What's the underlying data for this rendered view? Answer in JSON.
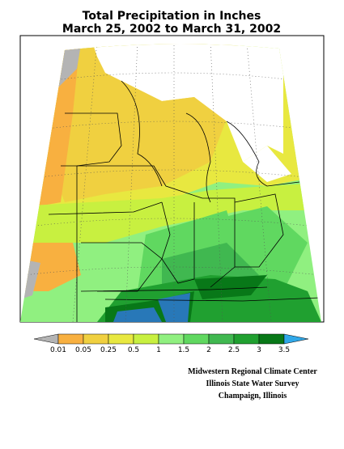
{
  "title": {
    "line1": "Total Precipitation in Inches",
    "line2": "March 25, 2002 to March 31, 2002"
  },
  "legend": {
    "ticks": [
      0.01,
      0.05,
      0.25,
      0.5,
      1,
      1.5,
      2,
      2.5,
      3,
      3.5
    ],
    "colors": [
      "#b4b4b4",
      "#f8b040",
      "#f0d040",
      "#e8e840",
      "#c8f040",
      "#90f080",
      "#60d860",
      "#40b850",
      "#20a030",
      "#087818",
      "#2878b8",
      "#30a8e8"
    ]
  },
  "credits": [
    "Midwestern Regional Climate Center",
    "Illinois State Water Survey",
    "Champaign, Illinois"
  ]
}
